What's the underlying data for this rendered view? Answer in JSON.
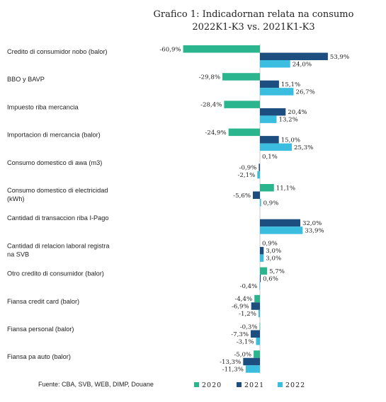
{
  "chart_data": {
    "type": "bar",
    "orientation": "horizontal",
    "title": "Grafico 1: Indicadornan relata na consumo",
    "subtitle": "2022K1-K3 vs. 2021K1-K3",
    "categories": [
      [
        "Credito di consumidor nobo (balor)"
      ],
      [
        "BBO y BAVP"
      ],
      [
        "Impuesto riba mercancia"
      ],
      [
        "Importacion di mercancia (balor)"
      ],
      [
        "Consumo domestico di awa (m3)"
      ],
      [
        "Consumo domestico di electricidad",
        "(kWh)"
      ],
      [
        "Cantidad di transaccion riba I-Pago"
      ],
      [
        "Cantidad di relacion laboral registra",
        "na SVB"
      ],
      [
        "Otro credito di consumidor (balor)"
      ],
      [
        "Fiansa credit card (balor)"
      ],
      [
        "Fiansa personal (balor)"
      ],
      [
        "Fiansa pa auto (balor)"
      ]
    ],
    "series": [
      {
        "name": "2020",
        "color": "#2bb58e",
        "values": [
          -60.9,
          -29.8,
          -28.4,
          -24.9,
          null,
          11.1,
          null,
          null,
          5.7,
          -4.4,
          -0.3,
          -5.0
        ],
        "labels": [
          "-60,9%",
          "-29,8%",
          "-28,4%",
          "-24,9%",
          "",
          "11,1%",
          "",
          "0,9%",
          "5,7%",
          "-4,4%",
          "-0,3%",
          "-5,0%"
        ]
      },
      {
        "name": "2021",
        "color": "#1c4e80",
        "values": [
          53.9,
          15.1,
          20.4,
          15.0,
          -0.9,
          -5.6,
          32.0,
          3.0,
          0.6,
          -6.9,
          -7.3,
          -13.3
        ],
        "labels": [
          "53,9%",
          "15,1%",
          "20,4%",
          "15,0%",
          "-0,9%",
          "-5,6%",
          "32,0%",
          "3,0%",
          "0,6%",
          "-6,9%",
          "-7,3%",
          "-13,3%"
        ]
      },
      {
        "name": "2022",
        "color": "#3bbde0",
        "values": [
          24.0,
          26.7,
          13.2,
          25.3,
          -2.1,
          0.9,
          33.9,
          3.0,
          -0.4,
          -1.2,
          -3.1,
          -11.3
        ],
        "labels": [
          "24,0%",
          "26,7%",
          "13,2%",
          "25,3%",
          "-2,1%",
          "0,9%",
          "33,9%",
          "3,0%",
          "-0,4%",
          "-1,2%",
          "-3,1%",
          "-11,3%"
        ]
      }
    ],
    "extra_labels": [
      {
        "category_index": 4,
        "text": "0,1%"
      }
    ],
    "legend_position": "bottom-right",
    "grid": false
  },
  "source_note": "Fuente: CBA, SVB, WEB, DIMP, Douane"
}
